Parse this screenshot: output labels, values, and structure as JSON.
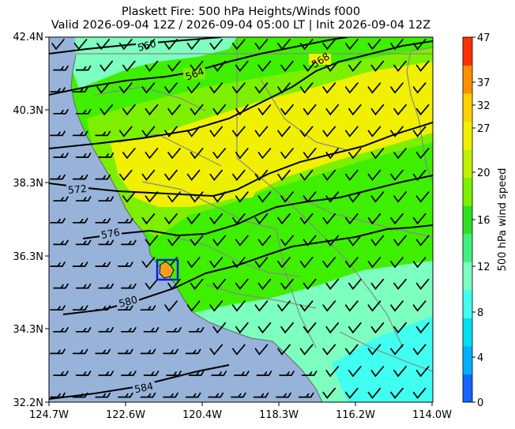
{
  "title": {
    "line1": "Plaskett Fire: 500 hPa Heights/Winds f000",
    "line2": "Valid 2026-09-04 12Z / 2026-09-04 05:00 LT | Init 2026-09-04 12Z"
  },
  "map": {
    "lat_ticks": [
      "42.4N",
      "40.3N",
      "38.3N",
      "36.3N",
      "34.3N",
      "32.2N"
    ],
    "lon_ticks": [
      "124.7W",
      "122.6W",
      "120.4W",
      "118.3W",
      "116.2W",
      "114.0W"
    ],
    "height_contours": [
      {
        "label": "560"
      },
      {
        "label": "564"
      },
      {
        "label": "568"
      },
      {
        "label": "572"
      },
      {
        "label": "576"
      },
      {
        "label": "580"
      },
      {
        "label": "584"
      }
    ],
    "fire_marker": {
      "name": "Plaskett Fire",
      "box_color": "#0a1fd6",
      "fill_color": "#f0a020"
    },
    "colors": {
      "ocean": "#97b3d9",
      "land_low": "#9ef5c8",
      "land_mid": "#3ef000",
      "land_high": "#f0f000",
      "boundaries": "#888888"
    }
  },
  "colorbar": {
    "label": "500 hPa wind speed",
    "ticks": [
      "47",
      "37",
      "32",
      "27",
      "20",
      "16",
      "12",
      "8",
      "4",
      "0"
    ],
    "colors": [
      "#1565ff",
      "#00b0ff",
      "#00e0f0",
      "#40fff0",
      "#7dffc0",
      "#40f080",
      "#30e020",
      "#7cf000",
      "#c0f000",
      "#f0f000",
      "#ffd000",
      "#ff9000",
      "#ff3000"
    ]
  }
}
